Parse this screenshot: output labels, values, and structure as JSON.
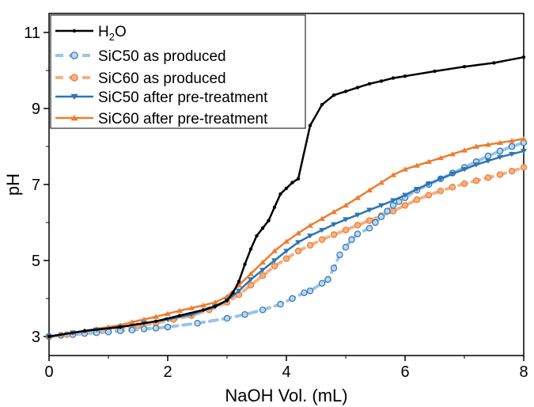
{
  "chart_data": {
    "type": "line",
    "xlabel": "NaOH Vol. (mL)",
    "ylabel": "pH",
    "xlim": [
      0,
      8
    ],
    "ylim": [
      2.5,
      11.5
    ],
    "xticks": [
      0,
      2,
      4,
      6,
      8
    ],
    "yticks": [
      3,
      5,
      7,
      9,
      11
    ],
    "grid": false,
    "legend_position": "top-left",
    "series": [
      {
        "name_main": "H",
        "name_sub": "2",
        "name_tail": "O",
        "color": "#000000",
        "marker": "dot",
        "dash": false,
        "width": 2.5,
        "x": [
          0,
          0.6,
          1.2,
          1.8,
          2.2,
          2.6,
          2.8,
          3.0,
          3.1,
          3.2,
          3.3,
          3.4,
          3.5,
          3.6,
          3.7,
          3.8,
          3.9,
          4.0,
          4.1,
          4.2,
          4.4,
          4.6,
          4.8,
          5.0,
          5.2,
          5.4,
          5.6,
          5.8,
          6.0,
          6.5,
          7.0,
          7.5,
          8.0
        ],
        "y": [
          3.0,
          3.15,
          3.25,
          3.4,
          3.55,
          3.7,
          3.8,
          3.95,
          4.15,
          4.45,
          4.9,
          5.3,
          5.65,
          5.85,
          6.05,
          6.4,
          6.75,
          6.9,
          7.05,
          7.15,
          8.55,
          9.1,
          9.35,
          9.45,
          9.55,
          9.65,
          9.72,
          9.8,
          9.85,
          9.98,
          10.1,
          10.2,
          10.35
        ]
      },
      {
        "name": "SiC50 as produced",
        "color": "#9dc3e6",
        "marker": "open-circle",
        "marker_edge": "#2e75b6",
        "marker_face": "#bdd7ee",
        "dash": true,
        "width": 4,
        "x": [
          0,
          0.2,
          0.4,
          0.6,
          0.8,
          1.0,
          1.2,
          1.4,
          1.6,
          1.8,
          2.0,
          2.5,
          3.0,
          3.3,
          3.6,
          3.9,
          4.1,
          4.3,
          4.4,
          4.6,
          4.7,
          4.8,
          4.9,
          5.0,
          5.1,
          5.2,
          5.4,
          5.5,
          5.6,
          5.7,
          5.8,
          5.9,
          6.0,
          6.2,
          6.4,
          6.6,
          6.8,
          7.0,
          7.2,
          7.4,
          7.6,
          7.8,
          8.0
        ],
        "y": [
          3.0,
          3.03,
          3.05,
          3.08,
          3.1,
          3.12,
          3.15,
          3.17,
          3.2,
          3.22,
          3.25,
          3.35,
          3.48,
          3.58,
          3.7,
          3.85,
          4.0,
          4.15,
          4.2,
          4.4,
          4.5,
          4.8,
          5.15,
          5.35,
          5.55,
          5.7,
          5.85,
          6.0,
          6.15,
          6.3,
          6.45,
          6.55,
          6.65,
          6.85,
          7.0,
          7.15,
          7.3,
          7.45,
          7.6,
          7.75,
          7.88,
          8.0,
          8.1
        ]
      },
      {
        "name": "SiC60 as produced",
        "color": "#f4b183",
        "marker": "filled-circle",
        "marker_edge": "#ed7d31",
        "marker_face": "#f4b183",
        "dash": true,
        "width": 4,
        "x": [
          0,
          0.3,
          0.6,
          0.9,
          1.2,
          1.5,
          1.8,
          2.1,
          2.4,
          2.7,
          3.0,
          3.2,
          3.4,
          3.6,
          3.8,
          4.0,
          4.2,
          4.4,
          4.6,
          4.8,
          5.0,
          5.2,
          5.4,
          5.6,
          5.8,
          6.0,
          6.2,
          6.4,
          6.6,
          6.8,
          7.0,
          7.2,
          7.4,
          7.6,
          7.8,
          8.0
        ],
        "y": [
          3.0,
          3.05,
          3.1,
          3.15,
          3.2,
          3.28,
          3.35,
          3.45,
          3.55,
          3.7,
          3.9,
          4.1,
          4.35,
          4.6,
          4.85,
          5.05,
          5.25,
          5.4,
          5.55,
          5.68,
          5.8,
          5.93,
          6.05,
          6.18,
          6.3,
          6.45,
          6.6,
          6.72,
          6.83,
          6.93,
          7.02,
          7.1,
          7.18,
          7.26,
          7.35,
          7.45
        ]
      },
      {
        "name": "SiC50 after pre-treatment",
        "color": "#2e75b6",
        "marker": "triangle-down",
        "dash": false,
        "width": 2.5,
        "x": [
          0,
          0.4,
          0.8,
          1.2,
          1.6,
          2.0,
          2.4,
          2.8,
          3.0,
          3.2,
          3.4,
          3.6,
          3.8,
          4.0,
          4.2,
          4.4,
          4.6,
          4.8,
          5.0,
          5.2,
          5.4,
          5.6,
          5.8,
          6.0,
          6.2,
          6.4,
          6.6,
          6.8,
          7.0,
          7.2,
          7.4,
          7.6,
          7.8,
          8.0
        ],
        "y": [
          3.0,
          3.1,
          3.18,
          3.25,
          3.35,
          3.45,
          3.58,
          3.78,
          3.95,
          4.2,
          4.5,
          4.75,
          5.0,
          5.25,
          5.48,
          5.65,
          5.8,
          5.95,
          6.08,
          6.2,
          6.33,
          6.45,
          6.58,
          6.72,
          6.88,
          7.02,
          7.15,
          7.28,
          7.4,
          7.52,
          7.62,
          7.72,
          7.8,
          7.88
        ]
      },
      {
        "name": "SiC60 after pre-treatment",
        "color": "#ed7d31",
        "marker": "triangle-up",
        "dash": false,
        "width": 2.5,
        "x": [
          0,
          0.2,
          0.4,
          0.6,
          0.8,
          1.0,
          1.2,
          1.4,
          1.6,
          1.8,
          2.0,
          2.2,
          2.4,
          2.6,
          2.8,
          3.0,
          3.2,
          3.4,
          3.6,
          3.8,
          4.0,
          4.2,
          4.4,
          4.6,
          4.8,
          5.0,
          5.2,
          5.4,
          5.6,
          5.8,
          6.0,
          6.2,
          6.4,
          6.6,
          6.8,
          7.0,
          7.2,
          7.4,
          7.6,
          7.8,
          8.0
        ],
        "y": [
          3.0,
          3.05,
          3.1,
          3.15,
          3.2,
          3.25,
          3.3,
          3.38,
          3.45,
          3.52,
          3.6,
          3.68,
          3.75,
          3.82,
          3.9,
          4.05,
          4.35,
          4.65,
          4.95,
          5.25,
          5.5,
          5.72,
          5.92,
          6.1,
          6.28,
          6.45,
          6.65,
          6.85,
          7.05,
          7.25,
          7.4,
          7.5,
          7.6,
          7.7,
          7.8,
          7.9,
          8.0,
          8.05,
          8.1,
          8.15,
          8.2
        ]
      }
    ]
  }
}
